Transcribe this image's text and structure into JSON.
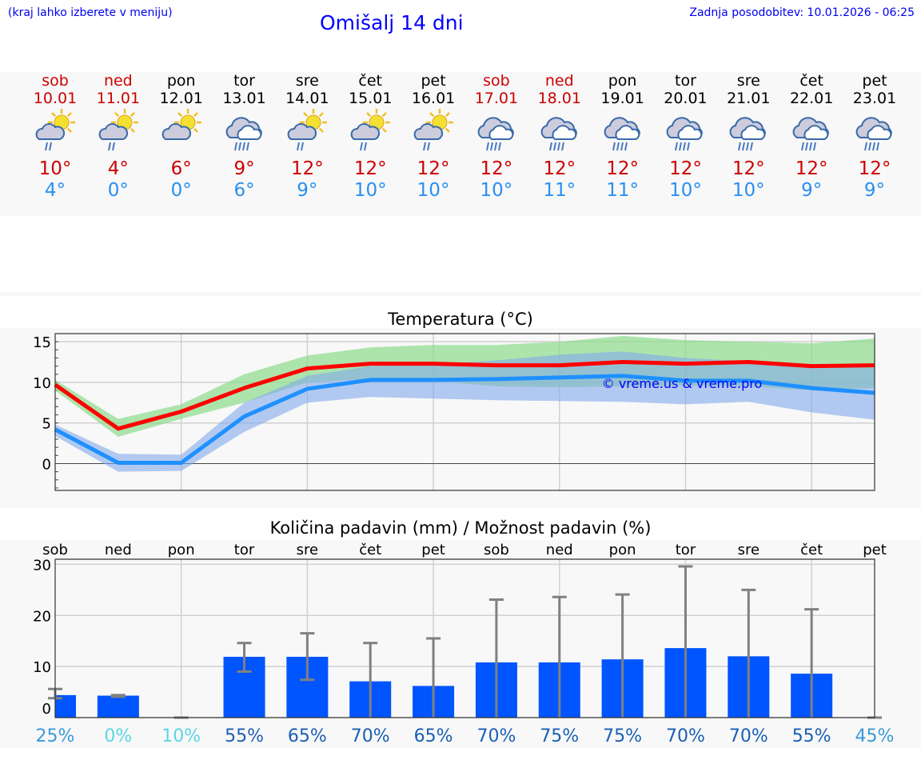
{
  "header": {
    "hint": "(kraj lahko izberete v meniju)",
    "title": "Omišalj 14 dni",
    "updated": "Zadnja posodobitev: 10.01.2026 - 06:25"
  },
  "colors": {
    "weekend": "#cc0000",
    "max": "#cc0000",
    "min": "#2a8ff0",
    "bar": "#0055ff",
    "maxLine": "#ff0000",
    "minLine": "#1e90ff"
  },
  "days": [
    {
      "name": "sob",
      "date": "10.01",
      "weekend": true,
      "icon": "sun-cloud-rain",
      "max": "10°",
      "min": "4°"
    },
    {
      "name": "ned",
      "date": "11.01",
      "weekend": true,
      "icon": "sun-cloud-rain",
      "max": "4°",
      "min": "0°"
    },
    {
      "name": "pon",
      "date": "12.01",
      "weekend": false,
      "icon": "sun-cloud",
      "max": "6°",
      "min": "0°"
    },
    {
      "name": "tor",
      "date": "13.01",
      "weekend": false,
      "icon": "cloud-rain",
      "max": "9°",
      "min": "6°"
    },
    {
      "name": "sre",
      "date": "14.01",
      "weekend": false,
      "icon": "sun-cloud-rain",
      "max": "12°",
      "min": "9°"
    },
    {
      "name": "čet",
      "date": "15.01",
      "weekend": false,
      "icon": "sun-cloud-rain",
      "max": "12°",
      "min": "10°"
    },
    {
      "name": "pet",
      "date": "16.01",
      "weekend": false,
      "icon": "sun-cloud-rain",
      "max": "12°",
      "min": "10°"
    },
    {
      "name": "sob",
      "date": "17.01",
      "weekend": true,
      "icon": "cloud-rain",
      "max": "12°",
      "min": "10°"
    },
    {
      "name": "ned",
      "date": "18.01",
      "weekend": true,
      "icon": "cloud-rain",
      "max": "12°",
      "min": "11°"
    },
    {
      "name": "pon",
      "date": "19.01",
      "weekend": false,
      "icon": "cloud-rain",
      "max": "12°",
      "min": "11°"
    },
    {
      "name": "tor",
      "date": "20.01",
      "weekend": false,
      "icon": "cloud-rain",
      "max": "12°",
      "min": "10°"
    },
    {
      "name": "sre",
      "date": "21.01",
      "weekend": false,
      "icon": "cloud-rain",
      "max": "12°",
      "min": "10°"
    },
    {
      "name": "čet",
      "date": "22.01",
      "weekend": false,
      "icon": "cloud-rain",
      "max": "12°",
      "min": "9°"
    },
    {
      "name": "pet",
      "date": "23.01",
      "weekend": false,
      "icon": "cloud-rain",
      "max": "12°",
      "min": "9°"
    }
  ],
  "chart_data": [
    {
      "type": "line",
      "title": "Temperatura (°C)",
      "ylim": [
        -3.3,
        16
      ],
      "yticks": [
        0,
        5,
        10,
        15
      ],
      "grid": true,
      "watermark": "© vreme.us & vreme.pro",
      "x": [
        0,
        1,
        2,
        3,
        4,
        5,
        6,
        7,
        8,
        9,
        10,
        11,
        12,
        13
      ],
      "series": [
        {
          "name": "max",
          "values": [
            9.7,
            4.3,
            6.4,
            9.3,
            11.7,
            12.3,
            12.3,
            12.1,
            12.1,
            12.5,
            12.3,
            12.5,
            12.0,
            12.1
          ],
          "band_max": [
            10.3,
            5.5,
            7.3,
            11,
            13.3,
            14.3,
            14.6,
            14.6,
            15,
            15.7,
            15.2,
            15,
            14.8,
            15.4
          ],
          "band_min": [
            9,
            3.3,
            5.5,
            7.5,
            10,
            10.4,
            10.2,
            9.5,
            9.4,
            9.5,
            9.6,
            9.5,
            9.0,
            9.3
          ]
        },
        {
          "name": "min",
          "values": [
            4.2,
            0.1,
            0.1,
            5.8,
            9.2,
            10.3,
            10.3,
            10.4,
            10.6,
            10.8,
            10.2,
            10.2,
            9.3,
            8.7
          ],
          "band_max": [
            4.8,
            1.2,
            1.1,
            7.5,
            10.8,
            12,
            12.2,
            12.7,
            13.4,
            13.8,
            13.0,
            12.6,
            12.0,
            11.8
          ],
          "band_min": [
            3.4,
            -1.0,
            -0.9,
            3.9,
            7.5,
            8.2,
            8.0,
            7.8,
            7.7,
            7.6,
            7.3,
            7.6,
            6.3,
            5.4
          ]
        }
      ]
    },
    {
      "type": "bar",
      "title": "Količina padavin (mm) / Možnost padavin (%)",
      "ylim": [
        0,
        31
      ],
      "yticks": [
        0,
        10,
        20,
        30
      ],
      "grid": true,
      "categories": [
        "sob",
        "ned",
        "pon",
        "tor",
        "sre",
        "čet",
        "pet",
        "sob",
        "ned",
        "pon",
        "tor",
        "sre",
        "čet",
        "pet"
      ],
      "values": [
        4.4,
        4.3,
        0,
        11.9,
        11.9,
        7.1,
        6.2,
        10.8,
        10.8,
        11.4,
        13.6,
        12.0,
        8.6,
        0
      ],
      "err_low": [
        3.8,
        4.1,
        0,
        9.0,
        7.4,
        0,
        0,
        0,
        0,
        0,
        0,
        0,
        0,
        0
      ],
      "err_high": [
        5.6,
        4.4,
        0,
        14.6,
        16.5,
        14.6,
        15.5,
        23.1,
        23.6,
        24.1,
        29.6,
        25.0,
        21.2,
        0
      ],
      "probability": [
        "25%",
        "0%",
        "10%",
        "55%",
        "65%",
        "70%",
        "65%",
        "70%",
        "75%",
        "75%",
        "70%",
        "70%",
        "55%",
        "45%"
      ],
      "probability_colors": [
        "#3a9ad9",
        "#5ad6e6",
        "#5ad6e6",
        "#1a5fb4",
        "#1a5fb4",
        "#1a5fb4",
        "#1a5fb4",
        "#1a5fb4",
        "#1a5fb4",
        "#1a5fb4",
        "#1a5fb4",
        "#1a5fb4",
        "#1a5fb4",
        "#3a9ad9"
      ]
    }
  ]
}
